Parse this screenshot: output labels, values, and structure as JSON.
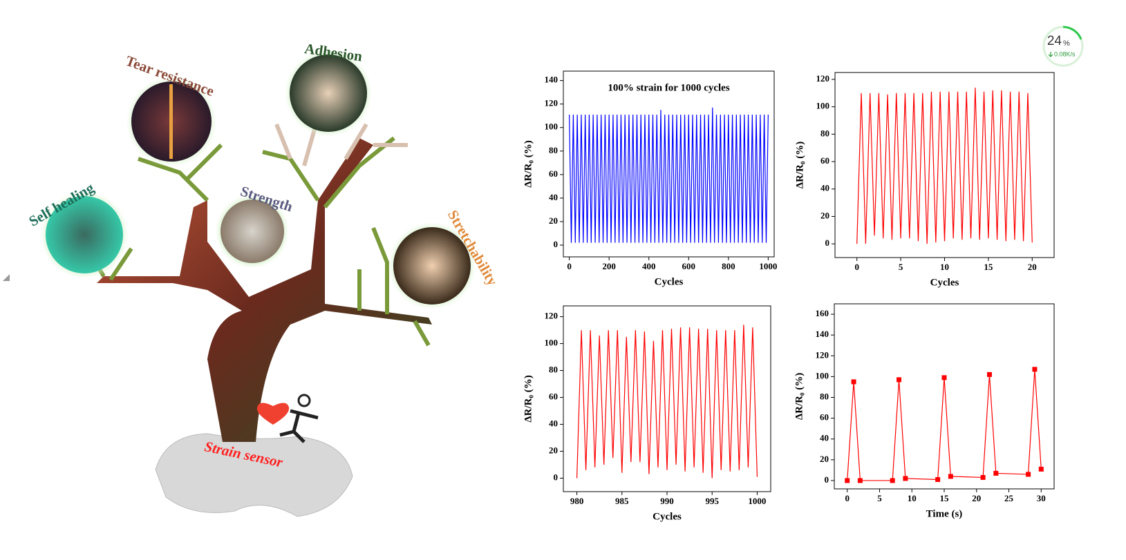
{
  "illustration": {
    "labels": [
      "Tear resistance",
      "Adhesion",
      "Self healing",
      "Strength",
      "Stretchability",
      "Strain sensor"
    ]
  },
  "widget": {
    "percent_value": "24",
    "percent_unit": "%",
    "speed": "0.08K/s"
  },
  "chart_data": [
    {
      "type": "line",
      "title": "100% strain for 1000 cycles",
      "xlabel": "Cycles",
      "ylabel": "ΔR/R₀ (%)",
      "color": "#0000ff",
      "x": [
        0,
        10,
        20,
        30,
        40,
        50,
        60,
        70,
        80,
        90,
        100,
        110,
        120,
        130,
        140,
        150,
        160,
        170,
        180,
        190,
        200,
        210,
        220,
        230,
        240,
        250,
        260,
        270,
        280,
        290,
        300,
        310,
        320,
        330,
        340,
        350,
        360,
        370,
        380,
        390,
        400,
        410,
        420,
        430,
        440,
        450,
        460,
        470,
        480,
        490,
        500,
        510,
        520,
        530,
        540,
        550,
        560,
        570,
        580,
        590,
        600,
        610,
        620,
        630,
        640,
        650,
        660,
        670,
        680,
        690,
        700,
        710,
        720,
        730,
        740,
        750,
        760,
        770,
        780,
        790,
        800,
        810,
        820,
        830,
        840,
        850,
        860,
        870,
        880,
        890,
        900,
        910,
        920,
        930,
        940,
        950,
        960,
        970,
        980,
        990,
        1000
      ],
      "values": [
        111,
        2,
        111,
        2,
        111,
        2,
        111,
        2,
        111,
        2,
        111,
        2,
        111,
        2,
        111,
        2,
        111,
        2,
        111,
        2,
        111,
        2,
        111,
        2,
        111,
        2,
        111,
        2,
        111,
        2,
        111,
        2,
        111,
        2,
        111,
        2,
        111,
        2,
        111,
        2,
        111,
        2,
        111,
        2,
        111,
        2,
        115,
        2,
        111,
        2,
        111,
        2,
        111,
        2,
        111,
        2,
        111,
        2,
        111,
        2,
        111,
        2,
        111,
        2,
        111,
        2,
        111,
        2,
        111,
        2,
        111,
        2,
        117,
        2,
        111,
        2,
        111,
        2,
        111,
        2,
        111,
        2,
        111,
        2,
        111,
        2,
        111,
        2,
        111,
        2,
        111,
        2,
        111,
        2,
        111,
        2,
        111,
        2,
        111,
        2,
        111
      ],
      "xlim": [
        -30,
        1030
      ],
      "xticks": [
        0,
        200,
        400,
        600,
        800,
        1000
      ],
      "ylim": [
        -10,
        148
      ],
      "yticks": [
        0,
        20,
        40,
        60,
        80,
        100,
        120,
        140
      ]
    },
    {
      "type": "line",
      "xlabel": "Cycles",
      "ylabel": "ΔR/R₀ (%)",
      "color": "#ff0000",
      "x": [
        0,
        0.5,
        1,
        1.5,
        2,
        2.5,
        3,
        3.5,
        4,
        4.5,
        5,
        5.5,
        6,
        6.5,
        7,
        7.5,
        8,
        8.5,
        9,
        9.5,
        10,
        10.5,
        11,
        11.5,
        12,
        12.5,
        13,
        13.5,
        14,
        14.5,
        15,
        15.5,
        16,
        16.5,
        17,
        17.5,
        18,
        18.5,
        19,
        19.5,
        20
      ],
      "values": [
        0,
        110,
        0,
        110,
        6,
        110,
        4,
        109,
        3,
        110,
        4,
        110,
        4,
        110,
        2,
        110,
        0,
        111,
        1,
        111,
        2,
        111,
        4,
        111,
        3,
        111,
        4,
        114,
        3,
        111,
        4,
        112,
        3,
        112,
        2,
        111,
        3,
        111,
        2,
        110,
        1
      ],
      "xlim": [
        -2.5,
        22.5
      ],
      "xticks": [
        0,
        5,
        10,
        15,
        20
      ],
      "ylim": [
        -10,
        125
      ],
      "yticks": [
        0,
        20,
        40,
        60,
        80,
        100,
        120
      ]
    },
    {
      "type": "line",
      "xlabel": "Cycles",
      "ylabel": "ΔR/R₀ (%)",
      "color": "#ff0000",
      "x": [
        980,
        980.5,
        981,
        981.5,
        982,
        982.5,
        983,
        983.5,
        984,
        984.5,
        985,
        985.5,
        986,
        986.5,
        987,
        987.5,
        988,
        988.5,
        989,
        989.5,
        990,
        990.5,
        991,
        991.5,
        992,
        992.5,
        993,
        993.5,
        994,
        994.5,
        995,
        995.5,
        996,
        996.5,
        997,
        997.5,
        998,
        998.5,
        999,
        999.5,
        1000
      ],
      "values": [
        0,
        110,
        6,
        110,
        8,
        106,
        10,
        110,
        15,
        110,
        4,
        105,
        12,
        110,
        12,
        109,
        3,
        102,
        8,
        110,
        6,
        111,
        10,
        112,
        5,
        112,
        8,
        111,
        4,
        111,
        0,
        110,
        6,
        110,
        5,
        110,
        6,
        114,
        8,
        112,
        1
      ],
      "xlim": [
        978.5,
        1001.5
      ],
      "xticks": [
        980,
        985,
        990,
        995,
        1000
      ],
      "ylim": [
        -10,
        128
      ],
      "yticks": [
        0,
        20,
        40,
        60,
        80,
        100,
        120
      ]
    },
    {
      "type": "line",
      "marker": "square",
      "xlabel": "Time (s)",
      "ylabel": "ΔR/R₀ (%)",
      "color": "#ff0000",
      "x": [
        0,
        1,
        2,
        7,
        8,
        9,
        14,
        15,
        16,
        21,
        22,
        23,
        28,
        29,
        30
      ],
      "values": [
        0,
        95,
        0,
        0,
        97,
        2,
        1,
        99,
        4,
        3,
        102,
        7,
        6,
        107,
        11
      ],
      "xlim": [
        -2,
        32
      ],
      "xticks": [
        0,
        5,
        10,
        15,
        20,
        25,
        30
      ],
      "ylim": [
        -8,
        170
      ],
      "yticks": [
        0,
        20,
        40,
        60,
        80,
        100,
        120,
        140,
        160
      ]
    }
  ]
}
